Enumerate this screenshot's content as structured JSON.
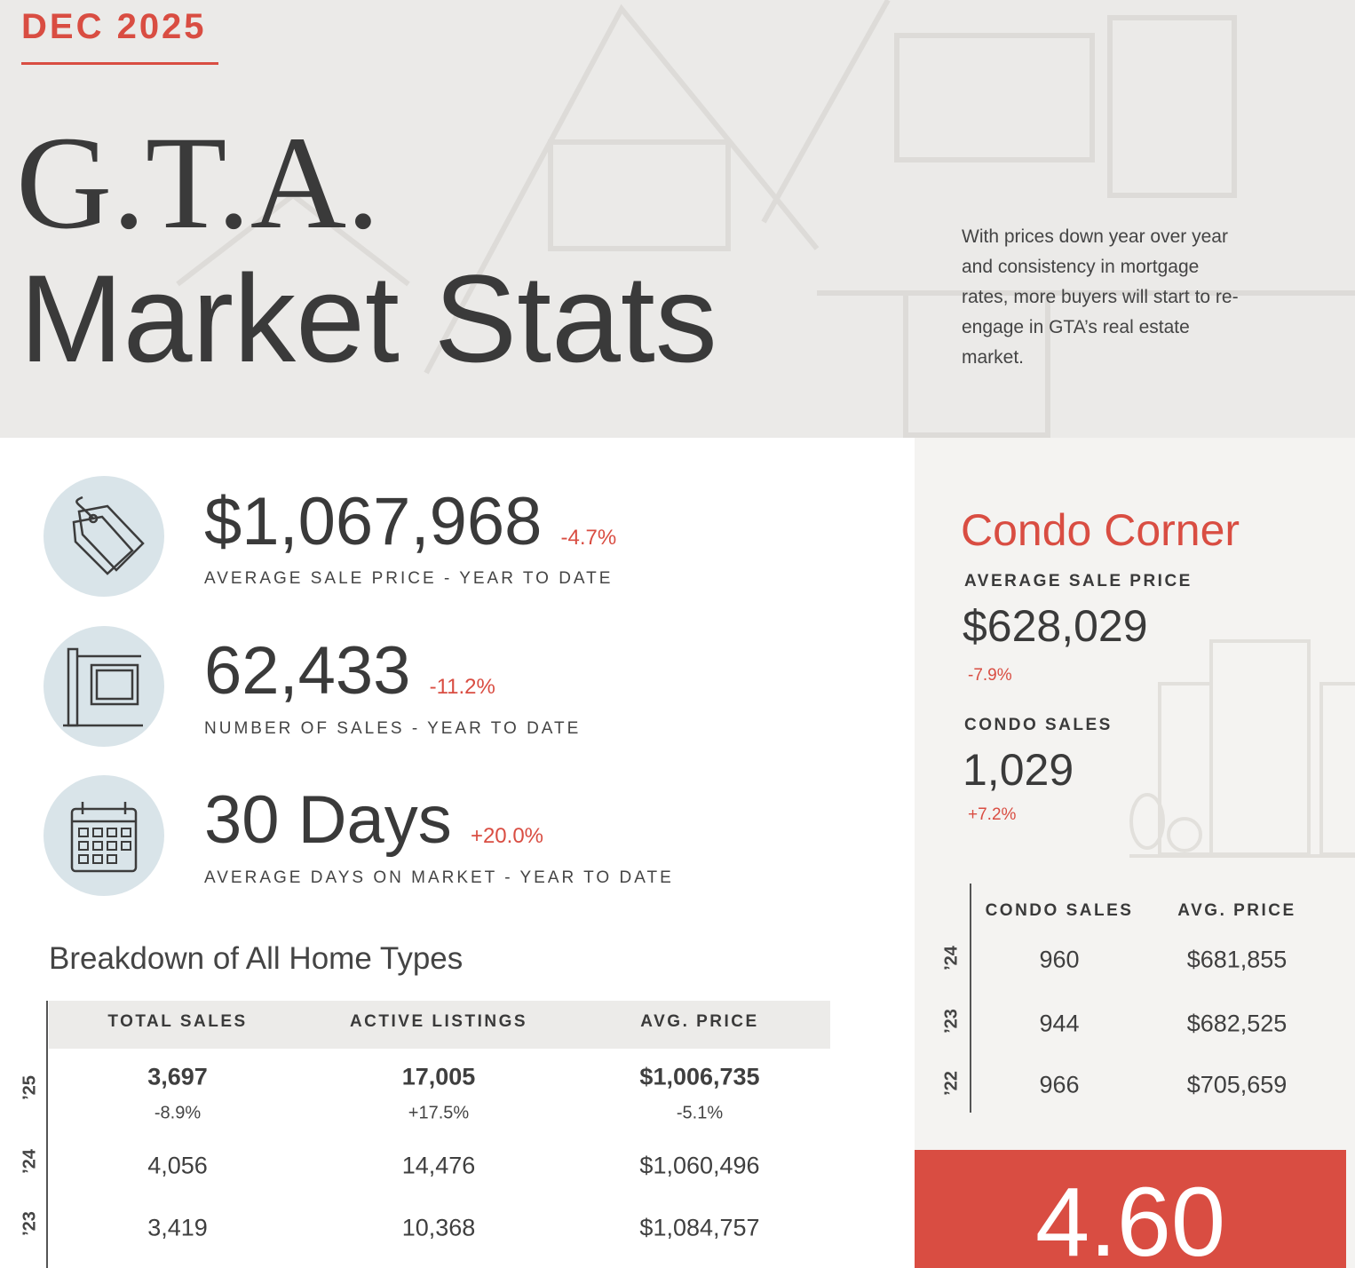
{
  "header": {
    "date": "DEC 2025",
    "title_line1": "G.T.A.",
    "title_line2": "Market Stats",
    "intro": "With prices down year over year and consistency in mortgage rates, more buyers will start to re-engage in GTA’s real estate market."
  },
  "stats": [
    {
      "value": "$1,067,968",
      "change": "-4.7%",
      "label": "AVERAGE SALE PRICE - YEAR TO DATE"
    },
    {
      "value": "62,433",
      "change": "-11.2%",
      "label": "NUMBER OF SALES - YEAR TO DATE"
    },
    {
      "value": "30 Days",
      "change": "+20.0%",
      "label": "AVERAGE DAYS ON MARKET - YEAR TO DATE"
    }
  ],
  "breakdown": {
    "title": "Breakdown of All Home Types",
    "columns": [
      "TOTAL SALES",
      "ACTIVE LISTINGS",
      "AVG. PRICE"
    ],
    "rows": [
      {
        "year": "’25",
        "cells": [
          "3,697",
          "17,005",
          "$1,006,735"
        ],
        "changes": [
          "-8.9%",
          "+17.5%",
          "-5.1%"
        ]
      },
      {
        "year": "’24",
        "cells": [
          "4,056",
          "14,476",
          "$1,060,496"
        ]
      },
      {
        "year": "’23",
        "cells": [
          "3,419",
          "10,368",
          "$1,084,757"
        ]
      }
    ]
  },
  "condo": {
    "title": "Condo Corner",
    "avg_label": "AVERAGE SALE PRICE",
    "avg_value": "$628,029",
    "avg_change": "-7.9%",
    "sales_label": "CONDO SALES",
    "sales_value": "1,029",
    "sales_change": "+7.2%",
    "columns": [
      "CONDO SALES",
      "AVG. PRICE"
    ],
    "rows": [
      {
        "year": "’24",
        "cells": [
          "960",
          "$681,855"
        ]
      },
      {
        "year": "’23",
        "cells": [
          "944",
          "$682,525"
        ]
      },
      {
        "year": "’22",
        "cells": [
          "966",
          "$705,659"
        ]
      }
    ]
  },
  "highlight": {
    "value": "4.60"
  }
}
